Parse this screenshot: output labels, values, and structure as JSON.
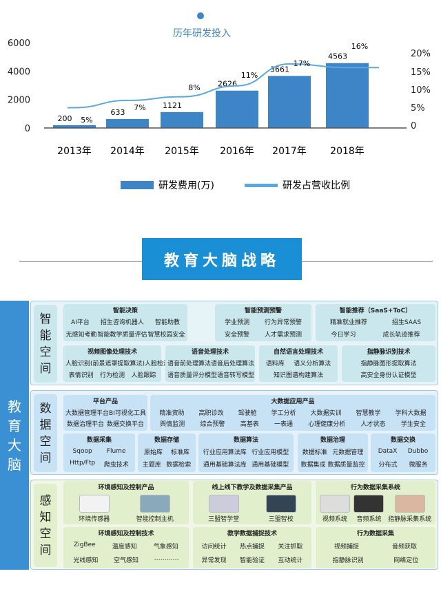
{
  "chart_data": {
    "type": "bar",
    "title": "历年研发投入",
    "categories": [
      "2013年",
      "2014年",
      "2015年",
      "2016年",
      "2017年",
      "2018年"
    ],
    "series": [
      {
        "name": "研发费用(万)",
        "type": "bar",
        "values": [
          200,
          633,
          1121,
          2626,
          3661,
          4563
        ],
        "labels": [
          "200",
          "633",
          "1121",
          "2626",
          "3661",
          "4563"
        ],
        "color": "#3d85c6"
      },
      {
        "name": "研发占营收比例",
        "type": "line",
        "values": [
          5,
          7,
          8,
          11,
          17,
          16
        ],
        "labels": [
          "5%",
          "7%",
          "8%",
          "11%",
          "17%",
          "16%"
        ],
        "color": "#5ba7e0"
      }
    ],
    "yticks": [
      "0",
      "2000",
      "4000",
      "6000"
    ],
    "ylim": [
      0,
      6000
    ],
    "y2ticks": [
      "0",
      "5%",
      "10%",
      "15%",
      "20%"
    ],
    "y2lim": [
      0,
      20
    ],
    "legend": "bottom"
  },
  "banner": "教育大脑战略",
  "brain_label": "教育大脑",
  "sections": [
    {
      "label": "智能空间",
      "bg": "#e6f4f8",
      "box": "#c9e7ec",
      "boxes": [
        {
          "title": "智能决策",
          "rows": [
            [
              "AI平台",
              "招生咨询机器人",
              "智能助教"
            ],
            [
              "无感知考勤",
              "智能教学质量评估",
              "智慧校园安全"
            ]
          ]
        },
        {
          "title": "智能预测预警",
          "rows": [
            [
              "学业预测",
              "行为异常预警"
            ],
            [
              "安全预警",
              "人才需求预测"
            ]
          ]
        },
        {
          "title": "智能推荐（SaaS+ToC）",
          "rows": [
            [
              "精准就业推荐",
              "招生SAAS"
            ],
            [
              "今日学习",
              "成长轨迹推荐"
            ]
          ]
        },
        {
          "title": "视频图像处理技术",
          "rows": [
            [
              "人脸识别(前景遮罩提取算法)",
              "人脸检测"
            ],
            [
              "表情识别",
              "行为检测",
              "人脸跟踪"
            ]
          ]
        },
        {
          "title": "语音处理技术",
          "rows": [
            [
              "语音前处理算法",
              "语音后处理算法"
            ],
            [
              "语音质量评分模型",
              "语音转写模型"
            ]
          ]
        },
        {
          "title": "自然语言处理技术",
          "rows": [
            [
              "语料库",
              "语义分析算法"
            ],
            [
              "知识图谱构建算法"
            ]
          ]
        },
        {
          "title": "指静脉识别技术",
          "rows": [
            [
              "指静脉图形提取算法"
            ],
            [
              "高安全身份认证模型"
            ]
          ]
        }
      ]
    },
    {
      "label": "数据空间",
      "bg": "#e6f2fb",
      "box": "#c8e2f5",
      "boxes": [
        {
          "title": "平台产品",
          "rows": [
            [
              "大数据管理平台",
              "BI可视化工具"
            ],
            [
              "数据治理平台",
              "数据交换平台"
            ]
          ]
        },
        {
          "title": "大数据应用产品",
          "rows": [
            [
              "精准资助",
              "高职诊改",
              "驾驶舱",
              "学工分析",
              "大数据实训",
              "智慧教学",
              "学科大数据"
            ],
            [
              "舆情监测",
              "综合预警",
              "高基表",
              "一表通",
              "心理健康分析",
              "人才状态",
              "学生安全"
            ]
          ]
        },
        {
          "title": "数据采集",
          "rows": [
            [
              "Sqoop",
              "Flume"
            ],
            [
              "Http/Ftp",
              "爬虫技术"
            ]
          ]
        },
        {
          "title": "数据存储",
          "rows": [
            [
              "原始库",
              "标准库"
            ],
            [
              "主题库",
              "数据检索"
            ]
          ]
        },
        {
          "title": "数据算法",
          "rows": [
            [
              "行业应用算法库",
              "行业应用模型"
            ],
            [
              "通用基础算法库",
              "通用基础模型"
            ]
          ]
        },
        {
          "title": "数据治理",
          "rows": [
            [
              "数据标准",
              "元数据管理"
            ],
            [
              "数据集成",
              "数据质量监控"
            ]
          ]
        },
        {
          "title": "数据交换",
          "rows": [
            [
              "DataX",
              "Dubbo"
            ],
            [
              "分布式",
              "微服务"
            ]
          ]
        }
      ]
    },
    {
      "label": "感知空间",
      "bg": "#f1f6e6",
      "box": "#e2efcc",
      "boxes": [
        {
          "title": "环境感知及控制产品",
          "products": [
            "环境传感器",
            "智能控制主机"
          ]
        },
        {
          "title": "线上线下教学及数据采集产品",
          "products": [
            "三盟智学堂",
            "三盟智校"
          ]
        },
        {
          "title": "行为数据采集系统",
          "products": [
            "视频系统",
            "音频系统",
            "指静脉采集系统"
          ]
        },
        {
          "title": "环境感知及控制技术",
          "rows": [
            [
              "ZigBee",
              "温度感知",
              "气象感知"
            ],
            [
              "光线感知",
              "空气感知",
              "…………"
            ]
          ]
        },
        {
          "title": "教学数据捕捉技术",
          "rows": [
            [
              "访问统计",
              "热点捕捉",
              "关注抓取"
            ],
            [
              "异常发现",
              "智能验证",
              "互动统计"
            ]
          ]
        },
        {
          "title": "行为数据采集",
          "rows": [
            [
              "视频捕捉",
              "音频获取"
            ],
            [
              "指静脉识别",
              "网络定位"
            ]
          ]
        }
      ]
    }
  ]
}
